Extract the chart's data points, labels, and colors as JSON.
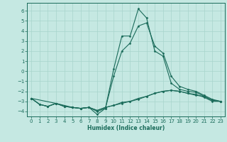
{
  "xlabel": "Humidex (Indice chaleur)",
  "bg_color": "#c5e8e2",
  "line_color": "#1a6b5a",
  "grid_color": "#a8d4cc",
  "xlim": [
    -0.5,
    23.5
  ],
  "ylim": [
    -4.5,
    6.8
  ],
  "yticks": [
    -4,
    -3,
    -2,
    -1,
    0,
    1,
    2,
    3,
    4,
    5,
    6
  ],
  "xticks": [
    0,
    1,
    2,
    3,
    4,
    5,
    6,
    7,
    8,
    9,
    10,
    11,
    12,
    13,
    14,
    15,
    16,
    17,
    18,
    19,
    20,
    21,
    22,
    23
  ],
  "series": [
    {
      "x": [
        0,
        1,
        2,
        3,
        4,
        5,
        6,
        7,
        8,
        9,
        10,
        11,
        12,
        13,
        14,
        15,
        16,
        17,
        18,
        19,
        20,
        21,
        22,
        23
      ],
      "y": [
        -2.7,
        -3.3,
        -3.5,
        -3.2,
        -3.5,
        -3.6,
        -3.7,
        -3.6,
        -4.3,
        -3.7,
        0.2,
        3.5,
        3.5,
        6.2,
        5.3,
        2.0,
        1.5,
        -1.2,
        -1.8,
        -2.0,
        -2.1,
        -2.5,
        -2.9,
        -3.0
      ]
    },
    {
      "x": [
        0,
        1,
        2,
        3,
        4,
        5,
        6,
        7,
        8,
        9,
        10,
        11,
        12,
        13,
        14,
        15,
        16,
        17,
        18,
        19,
        20,
        21,
        22,
        23
      ],
      "y": [
        -2.7,
        -3.3,
        -3.5,
        -3.2,
        -3.5,
        -3.6,
        -3.7,
        -3.6,
        -4.0,
        -3.7,
        -0.5,
        2.0,
        2.8,
        4.5,
        4.8,
        2.5,
        1.8,
        -0.5,
        -1.5,
        -1.8,
        -2.0,
        -2.4,
        -2.8,
        -3.0
      ]
    },
    {
      "x": [
        0,
        1,
        2,
        3,
        4,
        5,
        6,
        7,
        8,
        9,
        10,
        11,
        12,
        13,
        14,
        15,
        16,
        17,
        18,
        19,
        20,
        21,
        22,
        23
      ],
      "y": [
        -2.7,
        -3.3,
        -3.5,
        -3.2,
        -3.5,
        -3.6,
        -3.7,
        -3.6,
        -3.9,
        -3.6,
        -3.4,
        -3.1,
        -3.0,
        -2.7,
        -2.5,
        -2.2,
        -2.0,
        -1.9,
        -2.0,
        -2.2,
        -2.3,
        -2.6,
        -3.0,
        -3.0
      ]
    },
    {
      "x": [
        0,
        3,
        5,
        6,
        7,
        8,
        9,
        10,
        11,
        12,
        13,
        14,
        15,
        16,
        17,
        18,
        19,
        20,
        21,
        22,
        23
      ],
      "y": [
        -2.7,
        -3.2,
        -3.6,
        -3.7,
        -3.6,
        -3.9,
        -3.6,
        -3.4,
        -3.2,
        -3.0,
        -2.8,
        -2.5,
        -2.2,
        -2.0,
        -1.9,
        -2.0,
        -2.2,
        -2.4,
        -2.5,
        -2.9,
        -3.0
      ]
    }
  ]
}
